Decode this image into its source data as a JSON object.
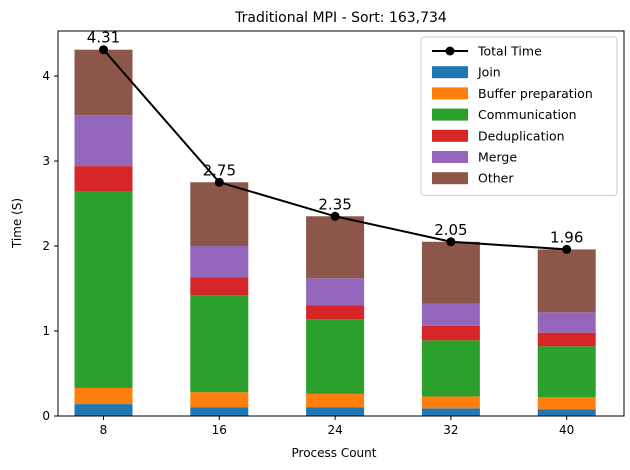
{
  "chart_data": {
    "type": "bar",
    "title": "Traditional MPI - Sort: 163,734",
    "xlabel": "Process Count",
    "ylabel": "Time (S)",
    "categories": [
      "8",
      "16",
      "24",
      "32",
      "40"
    ],
    "ylim": [
      0,
      4.53
    ],
    "yticks": [
      "0",
      "1",
      "2",
      "3",
      "4"
    ],
    "stacked": true,
    "legend_position": "top-right",
    "grid": false,
    "series": [
      {
        "name": "Join",
        "color": "#1f77b4",
        "values": [
          0.14,
          0.1,
          0.1,
          0.09,
          0.08
        ]
      },
      {
        "name": "Buffer preparation",
        "color": "#ff7f0e",
        "values": [
          0.19,
          0.18,
          0.16,
          0.14,
          0.14
        ]
      },
      {
        "name": "Communication",
        "color": "#2ca02c",
        "values": [
          2.31,
          1.14,
          0.88,
          0.66,
          0.6
        ]
      },
      {
        "name": "Deduplication",
        "color": "#d62728",
        "values": [
          0.3,
          0.21,
          0.16,
          0.17,
          0.16
        ]
      },
      {
        "name": "Merge",
        "color": "#9467bd",
        "values": [
          0.6,
          0.37,
          0.32,
          0.26,
          0.24
        ]
      },
      {
        "name": "Other",
        "color": "#8c564b",
        "values": [
          0.77,
          0.75,
          0.73,
          0.73,
          0.74
        ]
      }
    ],
    "line_series": {
      "name": "Total Time",
      "color": "#000000",
      "values": [
        4.31,
        2.75,
        2.35,
        2.05,
        1.96
      ],
      "labels": [
        "4.31",
        "2.75",
        "2.35",
        "2.05",
        "1.96"
      ]
    }
  }
}
